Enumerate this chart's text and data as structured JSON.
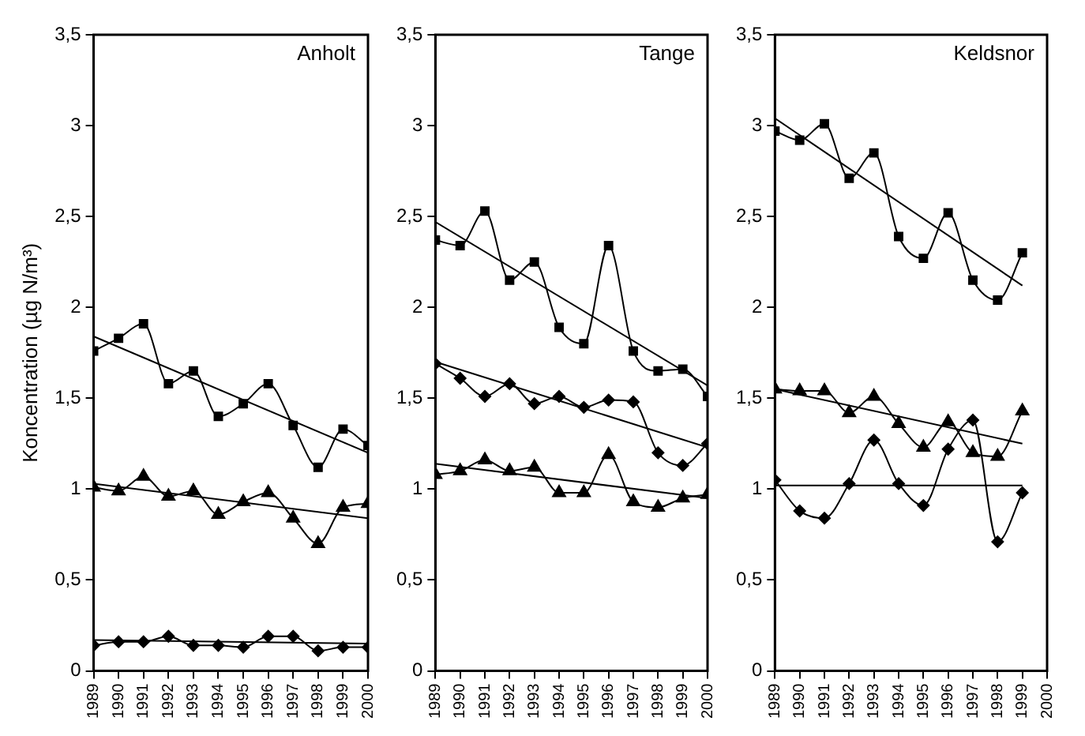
{
  "chart_data": [
    {
      "type": "line",
      "title": "Anholt",
      "ylabel": "Koncentration (µg N/m³)",
      "x": [
        1989,
        1990,
        1991,
        1992,
        1993,
        1994,
        1995,
        1996,
        1997,
        1998,
        1999,
        2000
      ],
      "xlim": [
        1989,
        2000
      ],
      "xticks": [
        1989,
        1990,
        1991,
        1992,
        1993,
        1994,
        1995,
        1996,
        1997,
        1998,
        1999,
        2000
      ],
      "ylim": [
        0,
        3.5
      ],
      "yticks": [
        0,
        {
          "value": 0.5,
          "label": "0,5"
        },
        1,
        {
          "value": 1.5,
          "label": "1,5"
        },
        2,
        {
          "value": 2.5,
          "label": "2,5"
        },
        3,
        {
          "value": 3.5,
          "label": "3,5"
        }
      ],
      "grid": false,
      "series": [
        {
          "color": "#000000",
          "marker": "square",
          "values": [
            1.76,
            1.83,
            1.91,
            1.58,
            1.65,
            1.4,
            1.47,
            1.58,
            1.35,
            1.12,
            1.33,
            1.24
          ]
        },
        {
          "color": "#000000",
          "marker": "triangle",
          "values": [
            1.01,
            0.99,
            1.07,
            0.96,
            0.99,
            0.86,
            0.93,
            0.98,
            0.84,
            0.7,
            0.9,
            0.92
          ]
        },
        {
          "color": "#000000",
          "marker": "diamond",
          "values": [
            0.14,
            0.16,
            0.16,
            0.19,
            0.14,
            0.14,
            0.13,
            0.19,
            0.19,
            0.11,
            0.13,
            0.13
          ]
        },
        {
          "type": "line",
          "color": "#000000",
          "marker": "none",
          "x": [
            1989,
            2000
          ],
          "values": [
            1.84,
            1.2
          ]
        },
        {
          "type": "line",
          "color": "#000000",
          "marker": "none",
          "x": [
            1989,
            2000
          ],
          "values": [
            1.03,
            0.84
          ]
        },
        {
          "type": "line",
          "color": "#000000",
          "marker": "none",
          "x": [
            1989,
            2000
          ],
          "values": [
            0.17,
            0.15
          ]
        }
      ]
    },
    {
      "type": "line",
      "title": "Tange",
      "x": [
        1989,
        1990,
        1991,
        1992,
        1993,
        1994,
        1995,
        1996,
        1997,
        1998,
        1999,
        2000
      ],
      "xlim": [
        1989,
        2000
      ],
      "xticks": [
        1989,
        1990,
        1991,
        1992,
        1993,
        1994,
        1995,
        1996,
        1997,
        1998,
        1999,
        2000
      ],
      "ylim": [
        0,
        3.5
      ],
      "yticks": [
        0,
        {
          "value": 0.5,
          "label": "0,5"
        },
        1,
        {
          "value": 1.5,
          "label": "1,5"
        },
        2,
        {
          "value": 2.5,
          "label": "2,5"
        },
        3,
        {
          "value": 3.5,
          "label": "3,5"
        }
      ],
      "grid": false,
      "series": [
        {
          "color": "#000000",
          "marker": "square",
          "values": [
            2.37,
            2.34,
            2.53,
            2.15,
            2.25,
            1.89,
            1.8,
            2.34,
            1.76,
            1.65,
            1.66,
            1.51
          ]
        },
        {
          "color": "#000000",
          "marker": "diamond",
          "values": [
            1.69,
            1.61,
            1.51,
            1.58,
            1.47,
            1.51,
            1.45,
            1.49,
            1.48,
            1.2,
            1.13,
            1.25
          ]
        },
        {
          "color": "#000000",
          "marker": "triangle",
          "values": [
            1.08,
            1.1,
            1.16,
            1.1,
            1.12,
            0.98,
            0.98,
            1.19,
            0.93,
            0.9,
            0.95,
            0.97
          ]
        },
        {
          "type": "line",
          "color": "#000000",
          "marker": "none",
          "x": [
            1989,
            2000
          ],
          "values": [
            2.47,
            1.57
          ]
        },
        {
          "type": "line",
          "color": "#000000",
          "marker": "none",
          "x": [
            1989,
            2000
          ],
          "values": [
            1.7,
            1.23
          ]
        },
        {
          "type": "line",
          "color": "#000000",
          "marker": "none",
          "x": [
            1989,
            2000
          ],
          "values": [
            1.14,
            0.95
          ]
        }
      ]
    },
    {
      "type": "line",
      "title": "Keldsnor",
      "x": [
        1989,
        1990,
        1991,
        1992,
        1993,
        1994,
        1995,
        1996,
        1997,
        1998,
        1999
      ],
      "xlim": [
        1989,
        2000
      ],
      "xticks": [
        1989,
        1990,
        1991,
        1992,
        1993,
        1994,
        1995,
        1996,
        1997,
        1998,
        1999,
        2000
      ],
      "ylim": [
        0,
        3.5
      ],
      "yticks": [
        0,
        {
          "value": 0.5,
          "label": "0,5"
        },
        1,
        {
          "value": 1.5,
          "label": "1,5"
        },
        2,
        {
          "value": 2.5,
          "label": "2,5"
        },
        3,
        {
          "value": 3.5,
          "label": "3,5"
        }
      ],
      "grid": false,
      "series": [
        {
          "color": "#000000",
          "marker": "square",
          "values": [
            2.97,
            2.92,
            3.01,
            2.71,
            2.85,
            2.39,
            2.27,
            2.52,
            2.15,
            2.04,
            2.3
          ]
        },
        {
          "color": "#000000",
          "marker": "triangle",
          "values": [
            1.55,
            1.54,
            1.54,
            1.42,
            1.51,
            1.36,
            1.23,
            1.37,
            1.2,
            1.18,
            1.43
          ]
        },
        {
          "color": "#000000",
          "marker": "diamond",
          "values": [
            1.05,
            0.88,
            0.84,
            1.03,
            1.27,
            1.03,
            0.91,
            1.22,
            1.38,
            0.71,
            0.98
          ]
        },
        {
          "type": "line",
          "color": "#000000",
          "marker": "none",
          "x": [
            1989,
            1999
          ],
          "values": [
            3.04,
            2.12
          ]
        },
        {
          "type": "line",
          "color": "#000000",
          "marker": "none",
          "x": [
            1989,
            1999
          ],
          "values": [
            1.55,
            1.25
          ]
        },
        {
          "type": "line",
          "color": "#000000",
          "marker": "none",
          "x": [
            1989,
            1999
          ],
          "values": [
            1.02,
            1.02
          ]
        }
      ]
    }
  ]
}
